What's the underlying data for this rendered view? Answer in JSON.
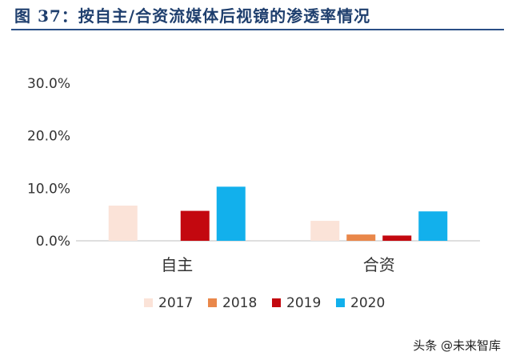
{
  "title": "图 37：按自主/合资流媒体后视镜的渗透率情况",
  "watermark": "头条 @未来智库",
  "chart_data": {
    "type": "bar",
    "categories": [
      "自主",
      "合资"
    ],
    "series": [
      {
        "name": "2017",
        "color": "#fbe3d8",
        "values": [
          6.7,
          3.8
        ]
      },
      {
        "name": "2018",
        "color": "#e9874a",
        "values": [
          0.0,
          1.2
        ]
      },
      {
        "name": "2019",
        "color": "#c3080f",
        "values": [
          5.7,
          1.0
        ]
      },
      {
        "name": "2020",
        "color": "#12b0ec",
        "values": [
          10.3,
          5.6
        ]
      }
    ],
    "ylim": [
      0,
      30
    ],
    "yticks": [
      0,
      10,
      20,
      30
    ],
    "ytick_labels": [
      "0.0%",
      "10.0%",
      "20.0%",
      "30.0%"
    ],
    "legend_position": "bottom",
    "grid": false
  }
}
